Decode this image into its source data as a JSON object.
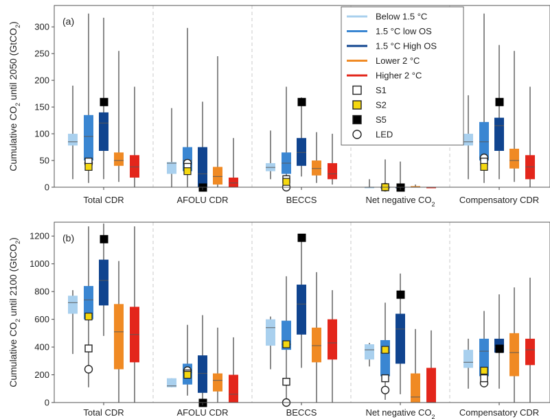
{
  "legend": {
    "entries": [
      {
        "key": "below15",
        "label": "Below 1.5 °C",
        "type": "line",
        "color": "#a9d0ee"
      },
      {
        "key": "lowos",
        "label": "1.5 °C low OS",
        "type": "line",
        "color": "#3a86d2"
      },
      {
        "key": "highos",
        "label": "1.5 °C High OS",
        "type": "line",
        "color": "#10448f"
      },
      {
        "key": "lower2",
        "label": "Lower  2 °C",
        "type": "line",
        "color": "#f08a24"
      },
      {
        "key": "higher2",
        "label": "Higher  2 °C",
        "type": "line",
        "color": "#e3261b"
      },
      {
        "key": "S1",
        "label": "S1",
        "type": "marker",
        "shape": "square",
        "fill": "#ffffff"
      },
      {
        "key": "S2",
        "label": "S2",
        "type": "marker",
        "shape": "square",
        "fill": "#f5d80f"
      },
      {
        "key": "S5",
        "label": "S5",
        "type": "marker",
        "shape": "square",
        "fill": "#000000"
      },
      {
        "key": "LED",
        "label": "LED",
        "type": "marker",
        "shape": "circle",
        "fill": "#ffffff"
      }
    ]
  },
  "chart_data": [
    {
      "type": "box",
      "panel_label": "(a)",
      "ylabel_parts": [
        "Cumulative CO",
        "2",
        " until 2050 (GtCO",
        "2",
        ")"
      ],
      "ylim": [
        0,
        340
      ],
      "yticks": [
        0,
        50,
        100,
        150,
        200,
        250,
        300
      ],
      "categories": [
        {
          "label": "Total CDR",
          "sub": ""
        },
        {
          "label": "AFOLU CDR",
          "sub": ""
        },
        {
          "label": "BECCS",
          "sub": ""
        },
        {
          "label": "Net negative CO",
          "sub": "2"
        },
        {
          "label": "Compensatory CDR",
          "sub": ""
        }
      ],
      "series": [
        {
          "key": "below15",
          "color": "#a9d0ee"
        },
        {
          "key": "lowos",
          "color": "#3a86d2"
        },
        {
          "key": "highos",
          "color": "#10448f"
        },
        {
          "key": "lower2",
          "color": "#f08a24"
        },
        {
          "key": "higher2",
          "color": "#e3261b"
        }
      ],
      "boxes": [
        [
          {
            "min": 15,
            "q1": 78,
            "median": 85,
            "q3": 100,
            "max": 190
          },
          {
            "min": 8,
            "q1": 50,
            "median": 95,
            "q3": 135,
            "max": 325
          },
          {
            "min": 15,
            "q1": 68,
            "median": 120,
            "q3": 140,
            "max": 317
          },
          {
            "min": 10,
            "q1": 40,
            "median": 50,
            "q3": 65,
            "max": 255
          },
          {
            "min": 0,
            "q1": 18,
            "median": 38,
            "q3": 60,
            "max": 188
          }
        ],
        [
          {
            "min": 0,
            "q1": 25,
            "median": 45,
            "q3": 47,
            "max": 148
          },
          {
            "min": 0,
            "q1": 30,
            "median": 50,
            "q3": 75,
            "max": 298
          },
          {
            "min": 0,
            "q1": 0,
            "median": 25,
            "q3": 75,
            "max": 160
          },
          {
            "min": 0,
            "q1": 5,
            "median": 20,
            "q3": 38,
            "max": 245
          },
          {
            "min": 0,
            "q1": 0,
            "median": 8,
            "q3": 18,
            "max": 92
          }
        ],
        [
          {
            "min": 15,
            "q1": 30,
            "median": 37,
            "q3": 45,
            "max": 106
          },
          {
            "min": 5,
            "q1": 25,
            "median": 45,
            "q3": 65,
            "max": 188
          },
          {
            "min": 20,
            "q1": 40,
            "median": 65,
            "q3": 92,
            "max": 168
          },
          {
            "min": 8,
            "q1": 22,
            "median": 35,
            "q3": 50,
            "max": 103
          },
          {
            "min": 5,
            "q1": 15,
            "median": 25,
            "q3": 45,
            "max": 100
          }
        ],
        [
          {
            "min": 0,
            "q1": 0,
            "median": 0,
            "q3": 0,
            "max": 15
          },
          {
            "min": 0,
            "q1": 0,
            "median": 0,
            "q3": 0,
            "max": 52
          },
          {
            "min": 0,
            "q1": 0,
            "median": 0,
            "q3": 0,
            "max": 48
          },
          {
            "min": 0,
            "q1": 0,
            "median": 0,
            "q3": 2,
            "max": 5
          },
          {
            "min": 0,
            "q1": 0,
            "median": 0,
            "q3": 0,
            "max": 0
          }
        ],
        [
          {
            "min": 15,
            "q1": 78,
            "median": 85,
            "q3": 100,
            "max": 172
          },
          {
            "min": 8,
            "q1": 50,
            "median": 85,
            "q3": 122,
            "max": 325
          },
          {
            "min": 15,
            "q1": 68,
            "median": 115,
            "q3": 130,
            "max": 266
          },
          {
            "min": 10,
            "q1": 35,
            "median": 50,
            "q3": 72,
            "max": 255
          },
          {
            "min": 0,
            "q1": 15,
            "median": 38,
            "q3": 60,
            "max": 188
          }
        ]
      ],
      "markers": [
        {
          "cat": 0,
          "S1": 48,
          "S2": 38,
          "S5": 160,
          "LED": 45
        },
        {
          "cat": 1,
          "S1": 38,
          "S2": 30,
          "S5": 0,
          "LED": 45
        },
        {
          "cat": 2,
          "S1": 15,
          "S2": 10,
          "S5": 160,
          "LED": 0
        },
        {
          "cat": 3,
          "S1": 0,
          "S2": 0,
          "S5": 0,
          "LED": 0
        },
        {
          "cat": 4,
          "S1": 48,
          "S2": 38,
          "S5": 160,
          "LED": 55
        }
      ]
    },
    {
      "type": "box",
      "panel_label": "(b)",
      "ylabel_parts": [
        "Cumulative CO",
        "2",
        " until 2100 (GtCO",
        "2",
        ")"
      ],
      "ylim": [
        0,
        1300
      ],
      "yticks": [
        0,
        200,
        400,
        600,
        800,
        1000,
        1200
      ],
      "categories": [
        {
          "label": "Total CDR",
          "sub": ""
        },
        {
          "label": "AFOLU CDR",
          "sub": ""
        },
        {
          "label": "BECCS",
          "sub": ""
        },
        {
          "label": "Net negative CO",
          "sub": "2"
        },
        {
          "label": "Compensatory CDR",
          "sub": ""
        }
      ],
      "series": [
        {
          "key": "below15",
          "color": "#a9d0ee"
        },
        {
          "key": "lowos",
          "color": "#3a86d2"
        },
        {
          "key": "highos",
          "color": "#10448f"
        },
        {
          "key": "lower2",
          "color": "#f08a24"
        },
        {
          "key": "higher2",
          "color": "#e3261b"
        }
      ],
      "boxes": [
        [
          {
            "min": 350,
            "q1": 640,
            "median": 720,
            "q3": 770,
            "max": 810
          },
          {
            "min": 110,
            "q1": 600,
            "median": 740,
            "q3": 840,
            "max": 1270
          },
          {
            "min": 480,
            "q1": 700,
            "median": 880,
            "q3": 1030,
            "max": 1290
          },
          {
            "min": 0,
            "q1": 240,
            "median": 510,
            "q3": 710,
            "max": 1020
          },
          {
            "min": 0,
            "q1": 290,
            "median": 490,
            "q3": 690,
            "max": 1270
          }
        ],
        [
          {
            "min": 110,
            "q1": 110,
            "median": 120,
            "q3": 175,
            "max": 175
          },
          {
            "min": 50,
            "q1": 130,
            "median": 215,
            "q3": 280,
            "max": 560
          },
          {
            "min": 0,
            "q1": 70,
            "median": 210,
            "q3": 340,
            "max": 630
          },
          {
            "min": 0,
            "q1": 80,
            "median": 160,
            "q3": 210,
            "max": 540
          },
          {
            "min": 0,
            "q1": 0,
            "median": 60,
            "q3": 200,
            "max": 470
          }
        ],
        [
          {
            "min": 240,
            "q1": 410,
            "median": 540,
            "q3": 600,
            "max": 620
          },
          {
            "min": 0,
            "q1": 380,
            "median": 420,
            "q3": 590,
            "max": 910
          },
          {
            "min": 250,
            "q1": 490,
            "median": 710,
            "q3": 850,
            "max": 1180
          },
          {
            "min": 0,
            "q1": 290,
            "median": 410,
            "q3": 540,
            "max": 940
          },
          {
            "min": 0,
            "q1": 310,
            "median": 430,
            "q3": 600,
            "max": 810
          }
        ],
        [
          {
            "min": 260,
            "q1": 310,
            "median": 380,
            "q3": 420,
            "max": 430
          },
          {
            "min": 20,
            "q1": 190,
            "median": 360,
            "q3": 450,
            "max": 720
          },
          {
            "min": 60,
            "q1": 280,
            "median": 530,
            "q3": 640,
            "max": 930
          },
          {
            "min": 0,
            "q1": 0,
            "median": 40,
            "q3": 210,
            "max": 530
          },
          {
            "min": 0,
            "q1": 0,
            "median": 0,
            "q3": 250,
            "max": 520
          }
        ],
        [
          {
            "min": 100,
            "q1": 250,
            "median": 290,
            "q3": 380,
            "max": 460
          },
          {
            "min": 110,
            "q1": 190,
            "median": 370,
            "q3": 460,
            "max": 660
          },
          {
            "min": 100,
            "q1": 360,
            "median": 400,
            "q3": 460,
            "max": 780
          },
          {
            "min": 0,
            "q1": 190,
            "median": 360,
            "q3": 500,
            "max": 830
          },
          {
            "min": 0,
            "q1": 270,
            "median": 380,
            "q3": 460,
            "max": 900
          }
        ]
      ],
      "markers": [
        {
          "cat": 0,
          "S1": 390,
          "S2": 620,
          "S5": 1180,
          "LED": 240
        },
        {
          "cat": 1,
          "S1": 210,
          "S2": 200,
          "S5": 0,
          "LED": 230
        },
        {
          "cat": 2,
          "S1": 150,
          "S2": 420,
          "S5": 1190,
          "LED": 0
        },
        {
          "cat": 3,
          "S1": 175,
          "S2": 380,
          "S5": 780,
          "LED": 90
        },
        {
          "cat": 4,
          "S1": 175,
          "S2": 230,
          "S5": 390,
          "LED": 140
        }
      ]
    }
  ]
}
